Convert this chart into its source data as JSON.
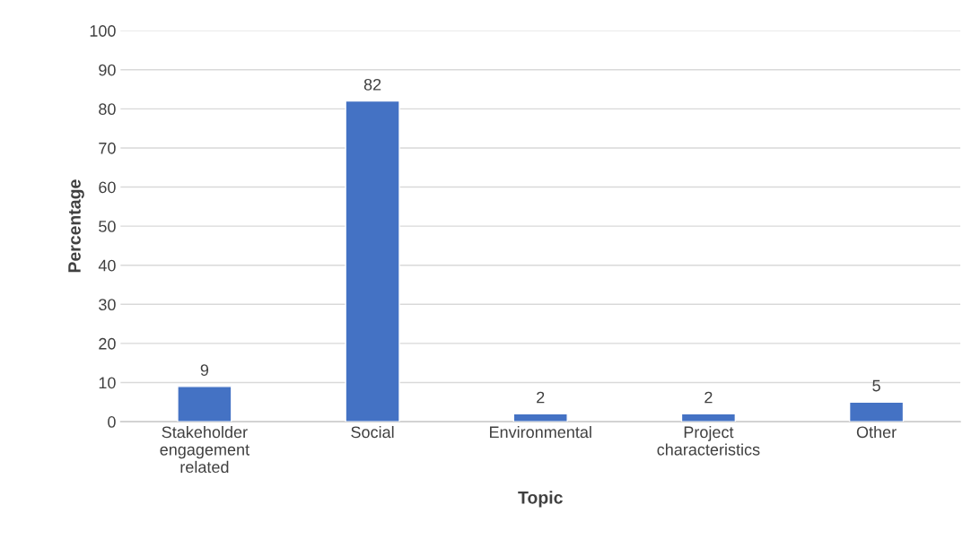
{
  "chart_data": {
    "type": "bar",
    "xlabel": "Topic",
    "ylabel": "Percentage",
    "categories": [
      "Stakeholder\nengagement\nrelated",
      "Social",
      "Environmental",
      "Project\ncharacteristics",
      "Other"
    ],
    "values": [
      9,
      82,
      2,
      2,
      5
    ],
    "color": "#4472c4",
    "ylim": [
      0,
      100
    ],
    "yticks": [
      0,
      10,
      20,
      30,
      40,
      50,
      60,
      70,
      80,
      90,
      100
    ],
    "grid": "y",
    "data_labels": true,
    "legend": false
  }
}
